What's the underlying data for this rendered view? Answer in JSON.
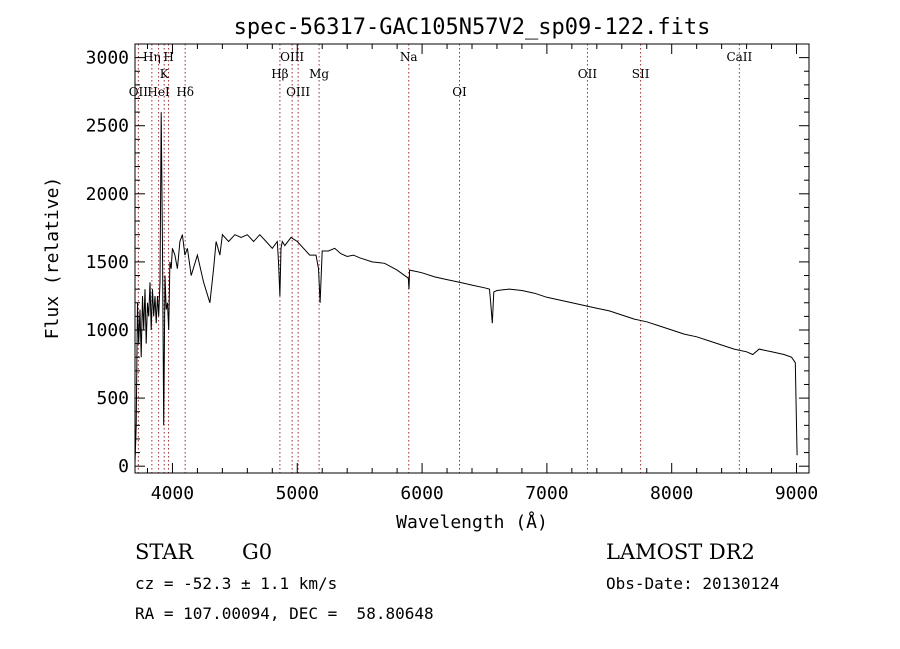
{
  "chart_data": {
    "type": "line",
    "title": "spec-56317-GAC105N57V2_sp09-122.fits",
    "xlabel": "Wavelength (Å)",
    "ylabel": "Flux (relative)",
    "xlim": [
      3700,
      9100
    ],
    "ylim": [
      -50,
      3100
    ],
    "x_ticks": [
      4000,
      5000,
      6000,
      7000,
      8000,
      9000
    ],
    "y_ticks": [
      0,
      500,
      1000,
      1500,
      2000,
      2500,
      3000
    ],
    "grid": false,
    "series": [
      {
        "x": [
          3700,
          3710,
          3720,
          3730,
          3740,
          3750,
          3760,
          3770,
          3780,
          3790,
          3800,
          3810,
          3820,
          3830,
          3840,
          3850,
          3860,
          3870,
          3880,
          3890,
          3900,
          3910,
          3920,
          3930,
          3940,
          3950,
          3960,
          3970,
          3980,
          3990,
          4000,
          4020,
          4040,
          4060,
          4080,
          4100,
          4120,
          4150,
          4200,
          4250,
          4300,
          4330,
          4350,
          4380,
          4400,
          4450,
          4500,
          4550,
          4600,
          4650,
          4700,
          4750,
          4800,
          4840,
          4850,
          4861,
          4870,
          4880,
          4900,
          4950,
          5000,
          5050,
          5100,
          5150,
          5170,
          5183,
          5200,
          5250,
          5300,
          5350,
          5400,
          5450,
          5500,
          5600,
          5700,
          5800,
          5890,
          5895,
          5900,
          5950,
          6000,
          6100,
          6200,
          6300,
          6400,
          6500,
          6540,
          6550,
          6563,
          6575,
          6600,
          6700,
          6800,
          6900,
          7000,
          7100,
          7200,
          7300,
          7400,
          7500,
          7600,
          7700,
          7800,
          7900,
          8000,
          8100,
          8200,
          8300,
          8400,
          8500,
          8600,
          8650,
          8700,
          8800,
          8900,
          8960,
          8990,
          9000,
          9005
        ],
        "y": [
          20,
          300,
          1200,
          900,
          1150,
          800,
          1250,
          1000,
          1300,
          900,
          1200,
          1100,
          1350,
          1000,
          1300,
          1100,
          1250,
          1050,
          1250,
          1100,
          1350,
          2600,
          1600,
          300,
          1400,
          1150,
          1200,
          1000,
          1500,
          1450,
          1600,
          1550,
          1450,
          1650,
          1700,
          1550,
          1600,
          1400,
          1550,
          1350,
          1200,
          1450,
          1650,
          1550,
          1700,
          1650,
          1700,
          1680,
          1700,
          1650,
          1700,
          1650,
          1600,
          1650,
          1500,
          1250,
          1600,
          1650,
          1620,
          1680,
          1650,
          1600,
          1550,
          1550,
          1450,
          1200,
          1580,
          1580,
          1600,
          1560,
          1540,
          1550,
          1530,
          1500,
          1490,
          1440,
          1380,
          1300,
          1440,
          1430,
          1420,
          1390,
          1370,
          1350,
          1330,
          1310,
          1300,
          1200,
          1050,
          1280,
          1290,
          1300,
          1290,
          1270,
          1240,
          1220,
          1200,
          1180,
          1160,
          1140,
          1110,
          1080,
          1060,
          1030,
          1000,
          970,
          950,
          920,
          890,
          860,
          840,
          820,
          860,
          840,
          820,
          800,
          760,
          300,
          80
        ]
      }
    ],
    "lines": [
      {
        "label": "OII",
        "x": 3727,
        "row": 3
      },
      {
        "label": "Hη",
        "x": 3835,
        "row": 1
      },
      {
        "label": "HeI",
        "x": 3889,
        "row": 3
      },
      {
        "label": "K",
        "x": 3934,
        "row": 2
      },
      {
        "label": "H",
        "x": 3969,
        "row": 1
      },
      {
        "label": "Hδ",
        "x": 4102,
        "row": 3
      },
      {
        "label": "Hβ",
        "x": 4861,
        "row": 2
      },
      {
        "label": "OIII",
        "x": 4959,
        "row": 1
      },
      {
        "label": "OIII",
        "x": 5007,
        "row": 3
      },
      {
        "label": "Mg",
        "x": 5175,
        "row": 2
      },
      {
        "label": "Na",
        "x": 5893,
        "row": 1
      },
      {
        "label": "OI",
        "x": 6300,
        "row": 3
      },
      {
        "label": "OII",
        "x": 7325,
        "row": 2
      },
      {
        "label": "SII",
        "x": 7751,
        "row": 2
      },
      {
        "label": "CaII",
        "x": 8542,
        "row": 1
      }
    ],
    "colors": {
      "spectrum": "#000000",
      "marker": "#a52a2a"
    }
  },
  "info": {
    "class": "STAR",
    "subclass": "G0",
    "cz": "cz = -52.3 ± 1.1 km/s",
    "radec": "RA = 107.00094, DEC =  58.80648",
    "survey": "LAMOST DR2",
    "obsdate": "Obs-Date: 20130124"
  }
}
